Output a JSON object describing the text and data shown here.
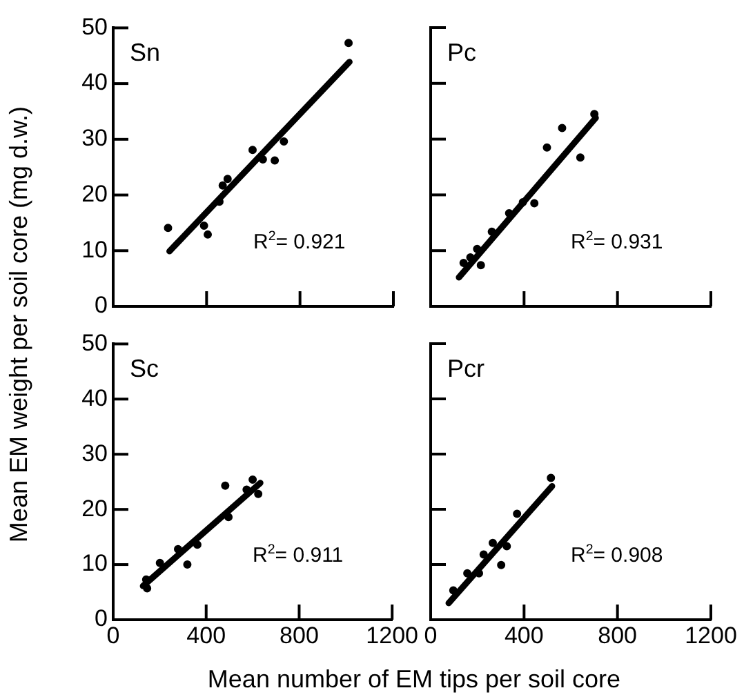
{
  "chart_data": [
    {
      "type": "scatter",
      "title": "Sn",
      "ylabel": "Mean EM weight per soil core (mg d.w.)",
      "annotations": [
        "R$^{2}$= 0.921"
      ],
      "xlim": [
        0,
        1200
      ],
      "xticks": [
        0,
        400,
        800,
        1200
      ],
      "ylim": [
        0,
        50
      ],
      "yticks": [
        0,
        10,
        20,
        30,
        40,
        50
      ],
      "tick_labels": "y",
      "marker": "circle",
      "series": [
        {
          "color": "#000000",
          "x": [
            235,
            389,
            405,
            455,
            469,
            490,
            597,
            641,
            692,
            731,
            1008
          ],
          "values": [
            14.1,
            14.5,
            12.9,
            18.8,
            21.7,
            22.9,
            28.1,
            26.4,
            26.2,
            29.6,
            47.3
          ]
        },
        {
          "type": "line",
          "marker": "none",
          "color": "#000000",
          "x": [
            241,
            1012
          ],
          "values": [
            9.9,
            43.9
          ]
        }
      ]
    },
    {
      "type": "scatter",
      "title": "Pc",
      "annotations": [
        "R$^{2}$= 0.931"
      ],
      "xlim": [
        0,
        1200
      ],
      "xticks": [
        0,
        400,
        800,
        1200
      ],
      "ylim": [
        0,
        50
      ],
      "yticks": [
        0,
        10,
        20,
        30,
        40,
        50
      ],
      "tick_labels": false,
      "marker": "circle",
      "series": [
        {
          "color": "#000000",
          "x": [
            141,
            170,
            199,
            215,
            262,
            336,
            395,
            444,
            498,
            563,
            641,
            701
          ],
          "values": [
            7.8,
            8.8,
            10.3,
            7.4,
            13.4,
            16.7,
            18.7,
            18.5,
            28.5,
            32,
            26.7,
            34.5
          ]
        },
        {
          "type": "line",
          "marker": "none",
          "color": "#000000",
          "x": [
            121,
            707
          ],
          "values": [
            5.2,
            33.8
          ]
        }
      ]
    },
    {
      "type": "scatter",
      "title": "Sc",
      "xlabel": "Mean number of EM tips per soil core",
      "annotations": [
        "R$^{2}$= 0.911"
      ],
      "xlim": [
        0,
        1200
      ],
      "xticks": [
        0,
        400,
        800,
        1200
      ],
      "ylim": [
        0,
        50
      ],
      "yticks": [
        0,
        10,
        20,
        30,
        40,
        50
      ],
      "marker": "circle",
      "series": [
        {
          "color": "#000000",
          "x": [
            142,
            146,
            201,
            279,
            319,
            362,
            482,
            496,
            574,
            600,
            624
          ],
          "values": [
            7.3,
            5.7,
            10.3,
            12.8,
            10,
            13.6,
            24.3,
            18.6,
            23.6,
            25.4,
            22.8
          ]
        },
        {
          "type": "line",
          "marker": "none",
          "color": "#000000",
          "x": [
            128,
            633
          ],
          "values": [
            6.1,
            24.8
          ]
        }
      ]
    },
    {
      "type": "scatter",
      "title": "Pcr",
      "annotations": [
        "R$^{2}$= 0.908"
      ],
      "xlim": [
        0,
        1200
      ],
      "xticks": [
        0,
        400,
        800,
        1200
      ],
      "ylim": [
        0,
        50
      ],
      "yticks": [
        0,
        10,
        20,
        30,
        40,
        50
      ],
      "tick_labels": "x",
      "marker": "circle",
      "series": [
        {
          "color": "#000000",
          "x": [
            97,
            157,
            207,
            227,
            266,
            302,
            326,
            370,
            515
          ],
          "values": [
            5.3,
            8.4,
            8.4,
            11.8,
            13.9,
            9.9,
            13.3,
            19.2,
            25.7
          ]
        },
        {
          "type": "line",
          "marker": "none",
          "color": "#000000",
          "x": [
            77,
            520
          ],
          "values": [
            3,
            24.2
          ]
        }
      ]
    }
  ]
}
